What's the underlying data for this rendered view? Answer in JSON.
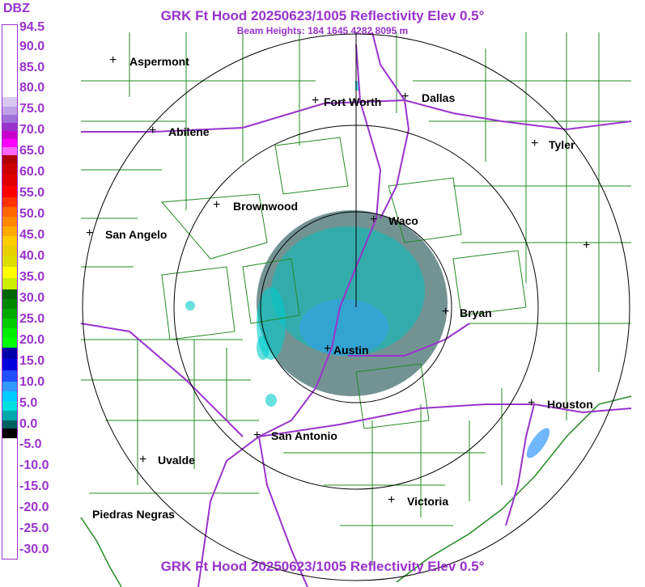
{
  "header": {
    "title": "GRK Ft Hood 20250623/1005 Reflectivity Elev 0.5°",
    "subtitle": "Beam Heights: 184 1645 4282 8095 m",
    "footer_title": "GRK Ft Hood 20250623/1005 Reflectivity Elev 0.5°"
  },
  "legend": {
    "unit": "DBZ",
    "labels": [
      "94.5",
      "90.0",
      "85.0",
      "80.0",
      "75.0",
      "70.0",
      "65.0",
      "60.0",
      "55.0",
      "50.0",
      "45.0",
      "40.0",
      "35.0",
      "30.0",
      "25.0",
      "20.0",
      "15.0",
      "10.0",
      "5.0",
      "0.0",
      "-5.0",
      "-10.0",
      "-15.0",
      "-20.0",
      "-25.0",
      "-30.0"
    ]
  },
  "cities": {
    "aspermont": "Aspermont",
    "fort_worth": "Fort Worth",
    "dallas": "Dallas",
    "abilene": "Abilene",
    "tyler": "Tyler",
    "brownwood": "Brownwood",
    "waco": "Waco",
    "san_angelo": "San Angelo",
    "bryan": "Bryan",
    "austin": "Austin",
    "houston": "Houston",
    "san_antonio": "San Antonio",
    "uvalde": "Uvalde",
    "victoria": "Victoria",
    "piedras_negras": "Piedras Negras"
  },
  "colors": {
    "text": "#9933cc",
    "county_lines": "#228b22",
    "highways": "#9933cc",
    "range_rings": "#000000",
    "echo_low": "#00cccc",
    "echo_mid": "#3399ff",
    "echo_dark": "#004040"
  }
}
